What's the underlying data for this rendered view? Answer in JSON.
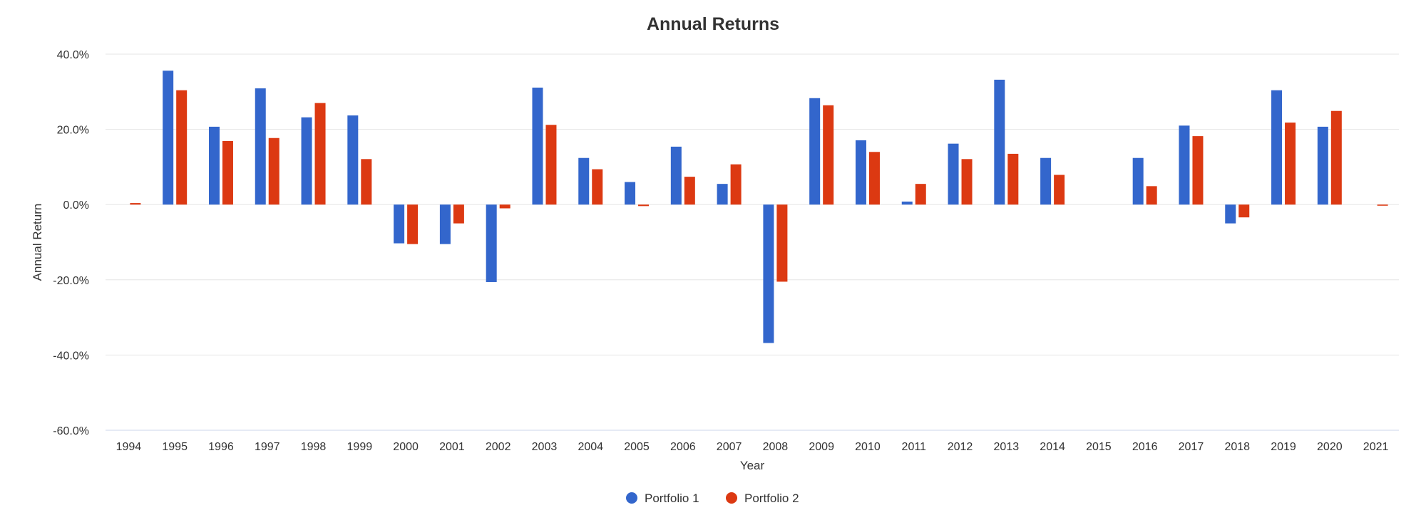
{
  "chart_data": {
    "type": "bar",
    "title": "Annual Returns",
    "xlabel": "Year",
    "ylabel": "Annual Return",
    "ylim": [
      -60,
      40
    ],
    "yticks": [
      40,
      20,
      0,
      -20,
      -40,
      -60
    ],
    "ytick_labels": [
      "40.0%",
      "20.0%",
      "0.0%",
      "-20.0%",
      "-40.0%",
      "-60.0%"
    ],
    "grid": true,
    "legend_position": "bottom-center",
    "categories": [
      "1994",
      "1995",
      "1996",
      "1997",
      "1998",
      "1999",
      "2000",
      "2001",
      "2002",
      "2003",
      "2004",
      "2005",
      "2006",
      "2007",
      "2008",
      "2009",
      "2010",
      "2011",
      "2012",
      "2013",
      "2014",
      "2015",
      "2016",
      "2017",
      "2018",
      "2019",
      "2020",
      "2021"
    ],
    "series": [
      {
        "name": "Portfolio 1",
        "color": "#3366cc",
        "values": [
          null,
          35.6,
          20.7,
          30.9,
          23.2,
          23.7,
          -10.3,
          -10.5,
          -20.6,
          31.1,
          12.4,
          6.0,
          15.4,
          5.5,
          -36.8,
          28.3,
          17.1,
          0.8,
          16.2,
          33.2,
          12.4,
          null,
          12.4,
          21.0,
          -5.0,
          30.4,
          20.7,
          null
        ]
      },
      {
        "name": "Portfolio 2",
        "color": "#dc3912",
        "values": [
          0.4,
          30.4,
          16.9,
          17.7,
          27.0,
          12.1,
          -10.5,
          -5.0,
          -1.0,
          21.2,
          9.4,
          -0.4,
          7.4,
          10.7,
          -20.5,
          26.4,
          14.0,
          5.5,
          12.1,
          13.5,
          7.9,
          null,
          4.9,
          18.2,
          -3.4,
          21.8,
          24.9,
          -0.3
        ]
      }
    ]
  }
}
